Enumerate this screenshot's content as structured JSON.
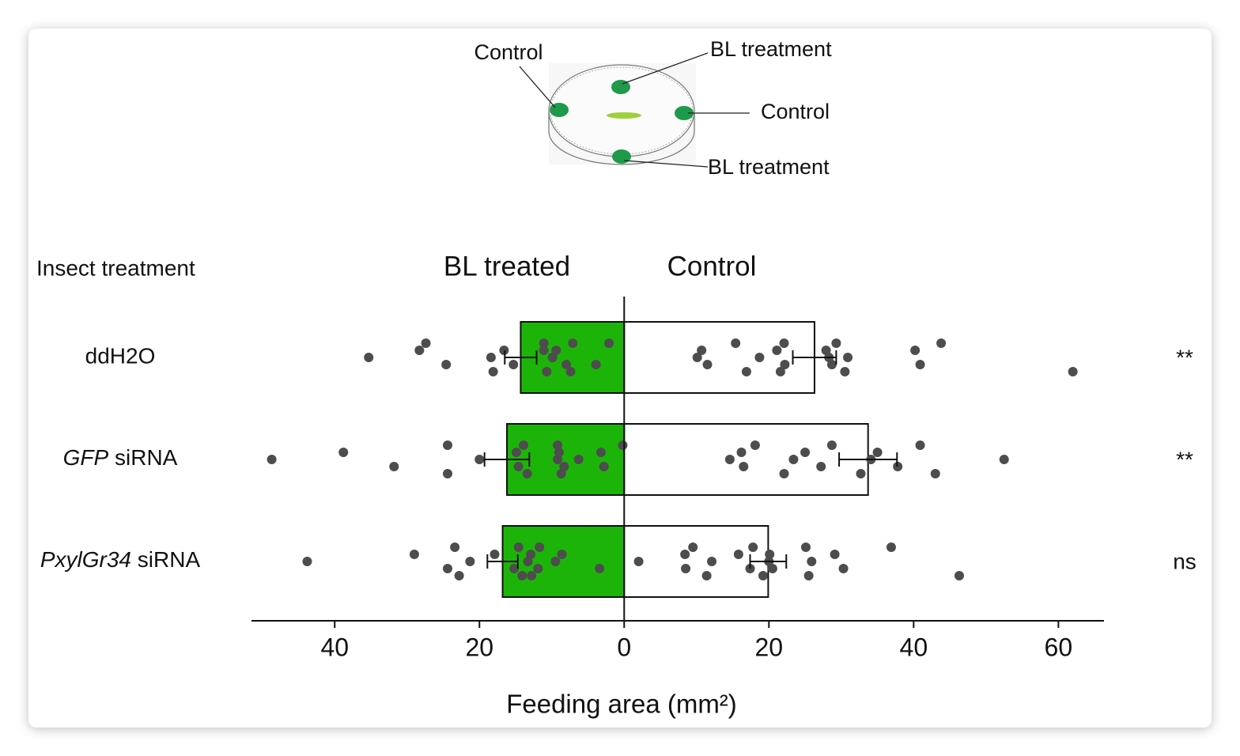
{
  "diagram": {
    "labels": [
      "Control",
      "BL treatment",
      "Control",
      "BL treatment"
    ]
  },
  "chart_data": {
    "type": "diverging-bar",
    "category_header": "Insect treatment",
    "categories": [
      "ddH2O",
      "GFP siRNA",
      "PxylGr34 siRNA"
    ],
    "italic_terms": [
      "GFP",
      "PxylGr34"
    ],
    "x_label": "Feeding area (mm²)",
    "xlim": [
      -51.5,
      66.3
    ],
    "xticks": [
      {
        "value": -40,
        "label": "40"
      },
      {
        "value": -20,
        "label": "20"
      },
      0,
      20,
      40,
      60
    ],
    "series": [
      {
        "name": "BL treated",
        "color": "#1db40a",
        "values": [
          -14.3,
          -16.2,
          -16.8
        ],
        "errors": [
          2.2,
          3.1,
          2.1
        ],
        "points": [
          [
            -35.3,
            -28.3,
            -24.6,
            -27.4,
            -18.1,
            -18.4,
            -16.6,
            -15.3,
            -11.1,
            -10.7,
            -9.9,
            -9.4,
            -8.0,
            -7.1,
            -7.4,
            -9.9,
            -11.1,
            -3.9,
            -2.1
          ],
          [
            -48.7,
            -38.8,
            -31.8,
            -24.4,
            -24.4,
            -20.0,
            -14.9,
            -14.6,
            -13.9,
            -13.4,
            -9.2,
            -9.0,
            -8.3,
            -9.2,
            -8.7,
            -6.3,
            -3.2,
            -2.8,
            -0.2
          ],
          [
            -43.8,
            -29.0,
            -24.4,
            -23.4,
            -22.8,
            -21.3,
            -17.9,
            -15.2,
            -14.6,
            -14.1,
            -13.3,
            -12.9,
            -11.9,
            -11.7,
            -12.8,
            -9.5,
            -8.6,
            -3.4
          ]
        ]
      },
      {
        "name": "Control",
        "color": "#ffffff",
        "values": [
          26.3,
          33.7,
          19.9
        ],
        "errors": [
          3.0,
          4.0,
          2.5
        ],
        "points": [
          [
            10.1,
            10.7,
            11.5,
            15.4,
            16.9,
            18.7,
            21.1,
            22.2,
            22.1,
            21.6,
            28.3,
            27.9,
            28.7,
            29.3,
            30.5,
            30.9,
            40.2,
            40.9,
            43.8,
            62.0
          ],
          [
            14.6,
            16.2,
            16.5,
            18.1,
            22.1,
            23.4,
            25.0,
            27.2,
            28.7,
            32.7,
            34.1,
            35.0,
            37.8,
            40.9,
            43.0,
            52.5
          ],
          [
            2.0,
            8.4,
            8.5,
            9.5,
            11.4,
            12.1,
            15.8,
            17.4,
            17.8,
            19.2,
            20.0,
            20.1,
            20.5,
            25.1,
            25.5,
            25.9,
            29.1,
            30.3,
            36.9,
            46.3
          ]
        ]
      }
    ],
    "point_color": "#4d4d4d",
    "annotations": [
      "**",
      "**",
      "ns"
    ]
  }
}
